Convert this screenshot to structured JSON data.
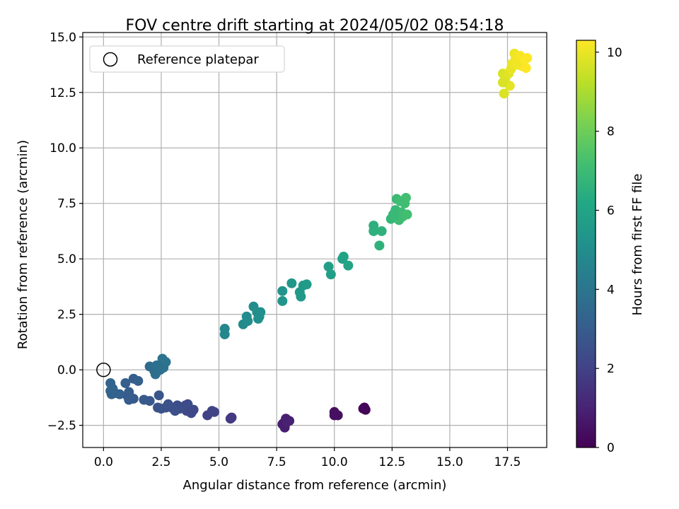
{
  "chart_data": {
    "type": "scatter",
    "title": "FOV centre drift starting at 2024/05/02 08:54:18",
    "xlabel": "Angular distance from reference (arcmin)",
    "ylabel": "Rotation from reference (arcmin)",
    "xlim": [
      -0.9,
      19.2
    ],
    "ylim": [
      -3.5,
      15.2
    ],
    "xticks": [
      0.0,
      2.5,
      5.0,
      7.5,
      10.0,
      12.5,
      15.0,
      17.5
    ],
    "xtick_labels": [
      "0.0",
      "2.5",
      "5.0",
      "7.5",
      "10.0",
      "12.5",
      "15.0",
      "17.5"
    ],
    "yticks": [
      -2.5,
      0.0,
      2.5,
      5.0,
      7.5,
      10.0,
      12.5,
      15.0
    ],
    "ytick_labels": [
      "−2.5",
      "0.0",
      "2.5",
      "5.0",
      "7.5",
      "10.0",
      "12.5",
      "15.0"
    ],
    "grid": true,
    "legend": {
      "placement": "upper-left",
      "entries": [
        "Reference platepar"
      ]
    },
    "reference_point": {
      "x": 0.0,
      "y": 0.0,
      "label": "Reference platepar"
    },
    "colorbar": {
      "label": "Hours from first FF file",
      "range": [
        0,
        10.3
      ],
      "ticks": [
        0,
        2,
        4,
        6,
        8,
        10
      ],
      "tick_labels": [
        "0",
        "2",
        "4",
        "6",
        "8",
        "10"
      ],
      "colormap": "viridis",
      "colors": [
        "#440154",
        "#482475",
        "#414487",
        "#355f8d",
        "#2a788e",
        "#21918c",
        "#22a884",
        "#44bf70",
        "#7ad151",
        "#bddf26",
        "#fde725"
      ]
    },
    "points": [
      {
        "x": 11.3,
        "y": -1.7,
        "t": 0.1
      },
      {
        "x": 11.35,
        "y": -1.8,
        "t": 0.1
      },
      {
        "x": 11.25,
        "y": -1.75,
        "t": 0.15
      },
      {
        "x": 10.0,
        "y": -1.9,
        "t": 0.4
      },
      {
        "x": 10.0,
        "y": -2.05,
        "t": 0.4
      },
      {
        "x": 10.15,
        "y": -2.05,
        "t": 0.45
      },
      {
        "x": 7.8,
        "y": -2.4,
        "t": 0.8
      },
      {
        "x": 7.85,
        "y": -2.6,
        "t": 0.85
      },
      {
        "x": 7.9,
        "y": -2.2,
        "t": 0.9
      },
      {
        "x": 8.05,
        "y": -2.3,
        "t": 0.9
      },
      {
        "x": 7.75,
        "y": -2.45,
        "t": 0.85
      },
      {
        "x": 7.95,
        "y": -2.35,
        "t": 0.95
      },
      {
        "x": 5.5,
        "y": -2.2,
        "t": 1.7
      },
      {
        "x": 5.55,
        "y": -2.15,
        "t": 1.75
      },
      {
        "x": 4.5,
        "y": -2.05,
        "t": 2.0
      },
      {
        "x": 4.7,
        "y": -1.85,
        "t": 2.05
      },
      {
        "x": 4.8,
        "y": -1.9,
        "t": 2.1
      },
      {
        "x": 3.9,
        "y": -1.8,
        "t": 2.2
      },
      {
        "x": 3.8,
        "y": -1.95,
        "t": 2.25
      },
      {
        "x": 3.6,
        "y": -1.85,
        "t": 2.3
      },
      {
        "x": 3.55,
        "y": -1.6,
        "t": 2.3
      },
      {
        "x": 3.65,
        "y": -1.55,
        "t": 2.35
      },
      {
        "x": 3.3,
        "y": -1.75,
        "t": 2.4
      },
      {
        "x": 3.2,
        "y": -1.6,
        "t": 2.45
      },
      {
        "x": 3.1,
        "y": -1.85,
        "t": 2.5
      },
      {
        "x": 2.95,
        "y": -1.7,
        "t": 2.5
      },
      {
        "x": 2.8,
        "y": -1.55,
        "t": 2.55
      },
      {
        "x": 2.7,
        "y": -1.7,
        "t": 2.6
      },
      {
        "x": 2.5,
        "y": -1.75,
        "t": 2.6
      },
      {
        "x": 2.35,
        "y": -1.7,
        "t": 2.65
      },
      {
        "x": 2.4,
        "y": -1.15,
        "t": 2.7
      },
      {
        "x": 3.85,
        "y": -1.85,
        "t": 2.25
      },
      {
        "x": 2.0,
        "y": -1.4,
        "t": 2.8
      },
      {
        "x": 1.75,
        "y": -1.35,
        "t": 2.85
      },
      {
        "x": 1.3,
        "y": -1.3,
        "t": 2.9
      },
      {
        "x": 1.1,
        "y": -1.35,
        "t": 2.95
      },
      {
        "x": 1.1,
        "y": -1.0,
        "t": 3.0
      },
      {
        "x": 1.3,
        "y": -0.4,
        "t": 3.05
      },
      {
        "x": 1.5,
        "y": -0.5,
        "t": 3.1
      },
      {
        "x": 1.05,
        "y": -1.2,
        "t": 3.0
      },
      {
        "x": 0.95,
        "y": -0.6,
        "t": 3.1
      },
      {
        "x": 0.7,
        "y": -1.1,
        "t": 3.15
      },
      {
        "x": 0.5,
        "y": -1.05,
        "t": 3.2
      },
      {
        "x": 0.35,
        "y": -1.1,
        "t": 3.2
      },
      {
        "x": 0.3,
        "y": -0.95,
        "t": 3.25
      },
      {
        "x": 0.4,
        "y": -0.85,
        "t": 3.3
      },
      {
        "x": 0.3,
        "y": -0.6,
        "t": 3.3
      },
      {
        "x": 2.0,
        "y": 0.15,
        "t": 3.6
      },
      {
        "x": 2.2,
        "y": -0.05,
        "t": 3.65
      },
      {
        "x": 2.3,
        "y": 0.2,
        "t": 3.7
      },
      {
        "x": 2.25,
        "y": -0.2,
        "t": 3.75
      },
      {
        "x": 2.45,
        "y": 0.0,
        "t": 3.8
      },
      {
        "x": 2.6,
        "y": 0.1,
        "t": 3.85
      },
      {
        "x": 2.55,
        "y": 0.5,
        "t": 3.9
      },
      {
        "x": 2.7,
        "y": 0.35,
        "t": 3.9
      },
      {
        "x": 2.4,
        "y": 0.15,
        "t": 3.8
      },
      {
        "x": 5.25,
        "y": 1.85,
        "t": 4.7
      },
      {
        "x": 5.25,
        "y": 1.6,
        "t": 4.75
      },
      {
        "x": 6.05,
        "y": 2.05,
        "t": 4.9
      },
      {
        "x": 6.2,
        "y": 2.4,
        "t": 4.95
      },
      {
        "x": 6.5,
        "y": 2.85,
        "t": 5.0
      },
      {
        "x": 6.65,
        "y": 2.6,
        "t": 5.05
      },
      {
        "x": 6.75,
        "y": 2.4,
        "t": 5.05
      },
      {
        "x": 6.8,
        "y": 2.6,
        "t": 5.1
      },
      {
        "x": 6.7,
        "y": 2.3,
        "t": 5.1
      },
      {
        "x": 6.25,
        "y": 2.2,
        "t": 5.0
      },
      {
        "x": 7.75,
        "y": 3.55,
        "t": 5.3
      },
      {
        "x": 7.75,
        "y": 3.1,
        "t": 5.35
      },
      {
        "x": 8.15,
        "y": 3.9,
        "t": 5.4
      },
      {
        "x": 8.5,
        "y": 3.5,
        "t": 5.45
      },
      {
        "x": 8.55,
        "y": 3.3,
        "t": 5.5
      },
      {
        "x": 8.65,
        "y": 3.8,
        "t": 5.5
      },
      {
        "x": 8.8,
        "y": 3.85,
        "t": 5.55
      },
      {
        "x": 9.75,
        "y": 4.65,
        "t": 5.75
      },
      {
        "x": 9.85,
        "y": 4.3,
        "t": 5.8
      },
      {
        "x": 10.35,
        "y": 5.0,
        "t": 5.9
      },
      {
        "x": 10.4,
        "y": 5.1,
        "t": 5.95
      },
      {
        "x": 10.6,
        "y": 4.7,
        "t": 6.0
      },
      {
        "x": 11.7,
        "y": 6.5,
        "t": 6.5
      },
      {
        "x": 11.7,
        "y": 6.25,
        "t": 6.55
      },
      {
        "x": 11.95,
        "y": 5.6,
        "t": 6.6
      },
      {
        "x": 12.05,
        "y": 6.25,
        "t": 6.6
      },
      {
        "x": 12.45,
        "y": 6.8,
        "t": 6.8
      },
      {
        "x": 12.55,
        "y": 7.0,
        "t": 6.85
      },
      {
        "x": 12.65,
        "y": 7.2,
        "t": 6.9
      },
      {
        "x": 12.7,
        "y": 7.7,
        "t": 6.95
      },
      {
        "x": 12.8,
        "y": 6.75,
        "t": 7.0
      },
      {
        "x": 12.9,
        "y": 7.1,
        "t": 7.0
      },
      {
        "x": 12.95,
        "y": 6.9,
        "t": 7.05
      },
      {
        "x": 13.05,
        "y": 7.5,
        "t": 7.1
      },
      {
        "x": 13.1,
        "y": 7.75,
        "t": 7.15
      },
      {
        "x": 13.15,
        "y": 7.0,
        "t": 7.15
      },
      {
        "x": 12.85,
        "y": 7.6,
        "t": 7.1
      },
      {
        "x": 12.6,
        "y": 6.95,
        "t": 6.9
      },
      {
        "x": 17.3,
        "y": 13.35,
        "t": 9.7
      },
      {
        "x": 17.35,
        "y": 12.45,
        "t": 9.75
      },
      {
        "x": 17.4,
        "y": 13.1,
        "t": 9.8
      },
      {
        "x": 17.55,
        "y": 13.35,
        "t": 9.85
      },
      {
        "x": 17.6,
        "y": 12.8,
        "t": 9.9
      },
      {
        "x": 17.65,
        "y": 13.55,
        "t": 9.95
      },
      {
        "x": 17.7,
        "y": 13.8,
        "t": 10.0
      },
      {
        "x": 17.8,
        "y": 14.25,
        "t": 10.05
      },
      {
        "x": 17.85,
        "y": 14.0,
        "t": 10.1
      },
      {
        "x": 17.95,
        "y": 13.85,
        "t": 10.15
      },
      {
        "x": 18.05,
        "y": 14.15,
        "t": 10.2
      },
      {
        "x": 18.1,
        "y": 13.7,
        "t": 10.2
      },
      {
        "x": 18.2,
        "y": 13.9,
        "t": 10.25
      },
      {
        "x": 18.3,
        "y": 13.6,
        "t": 10.3
      },
      {
        "x": 18.35,
        "y": 14.05,
        "t": 10.3
      },
      {
        "x": 17.3,
        "y": 12.95,
        "t": 9.7
      },
      {
        "x": 17.9,
        "y": 13.75,
        "t": 10.1
      }
    ]
  }
}
